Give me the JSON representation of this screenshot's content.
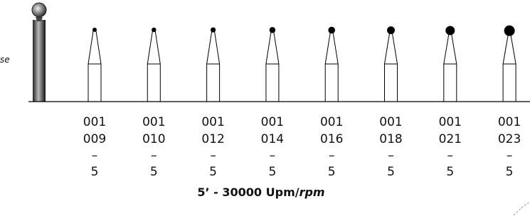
{
  "side_label": "se",
  "items": [
    {
      "line1": "001",
      "line2": "009",
      "dash": "–",
      "count": "5"
    },
    {
      "line1": "001",
      "line2": "010",
      "dash": "–",
      "count": "5"
    },
    {
      "line1": "001",
      "line2": "012",
      "dash": "–",
      "count": "5"
    },
    {
      "line1": "001",
      "line2": "014",
      "dash": "–",
      "count": "5"
    },
    {
      "line1": "001",
      "line2": "016",
      "dash": "–",
      "count": "5"
    },
    {
      "line1": "001",
      "line2": "018",
      "dash": "–",
      "count": "5"
    },
    {
      "line1": "001",
      "line2": "021",
      "dash": "–",
      "count": "5"
    },
    {
      "line1": "001",
      "line2": "023",
      "dash": "–",
      "count": "5"
    }
  ],
  "footer": {
    "text": "5’ - 30000 Upm/",
    "italic": "rpm"
  }
}
